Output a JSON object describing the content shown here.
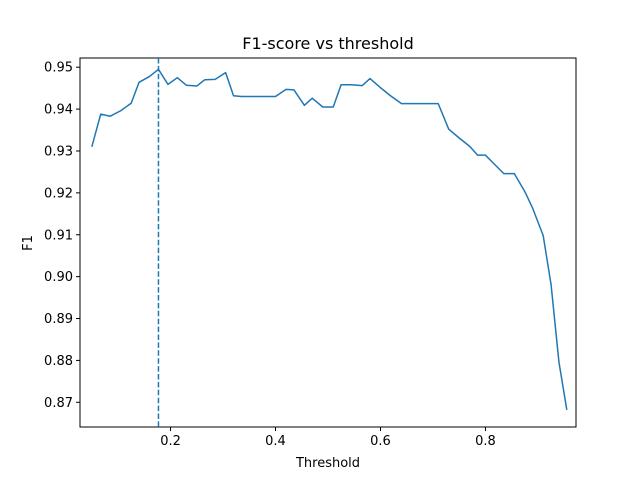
{
  "chart_data": {
    "type": "line",
    "title": "F1-score vs threshold",
    "xlabel": "Threshold",
    "ylabel": "F1",
    "xlim": [
      0.0275,
      0.9725
    ],
    "ylim": [
      0.8641,
      0.9522
    ],
    "xticks": [
      0.2,
      0.4,
      0.6,
      0.8
    ],
    "xtick_labels": [
      "0.2",
      "0.4",
      "0.6",
      "0.8"
    ],
    "yticks": [
      0.87,
      0.88,
      0.89,
      0.9,
      0.91,
      0.92,
      0.93,
      0.94,
      0.95
    ],
    "ytick_labels": [
      "0.87",
      "0.88",
      "0.89",
      "0.90",
      "0.91",
      "0.92",
      "0.93",
      "0.94",
      "0.95"
    ],
    "grid": false,
    "line_color": "#1f77b4",
    "series": [
      {
        "x": [
          0.05,
          0.067,
          0.085,
          0.105,
          0.125,
          0.14,
          0.16,
          0.177,
          0.195,
          0.213,
          0.23,
          0.25,
          0.265,
          0.285,
          0.305,
          0.32,
          0.335,
          0.355,
          0.375,
          0.4,
          0.42,
          0.435,
          0.455,
          0.47,
          0.49,
          0.51,
          0.525,
          0.545,
          0.565,
          0.58,
          0.6,
          0.62,
          0.64,
          0.66,
          0.68,
          0.71,
          0.73,
          0.75,
          0.77,
          0.785,
          0.8,
          0.815,
          0.835,
          0.855,
          0.875,
          0.89,
          0.91,
          0.925,
          0.94,
          0.955
        ],
        "y": [
          0.931,
          0.9388,
          0.9383,
          0.9396,
          0.9414,
          0.9464,
          0.9478,
          0.9495,
          0.9459,
          0.9475,
          0.9457,
          0.9455,
          0.947,
          0.9471,
          0.9487,
          0.9432,
          0.943,
          0.943,
          0.943,
          0.943,
          0.9447,
          0.9446,
          0.9409,
          0.9426,
          0.9405,
          0.9405,
          0.9458,
          0.9458,
          0.9456,
          0.9473,
          0.9451,
          0.9431,
          0.9413,
          0.9413,
          0.9413,
          0.9413,
          0.9352,
          0.9331,
          0.9311,
          0.929,
          0.929,
          0.9271,
          0.9246,
          0.9246,
          0.9203,
          0.9163,
          0.9098,
          0.8981,
          0.8796,
          0.8682
        ]
      }
    ],
    "vline": {
      "x": 0.177,
      "style": "dashed"
    }
  }
}
